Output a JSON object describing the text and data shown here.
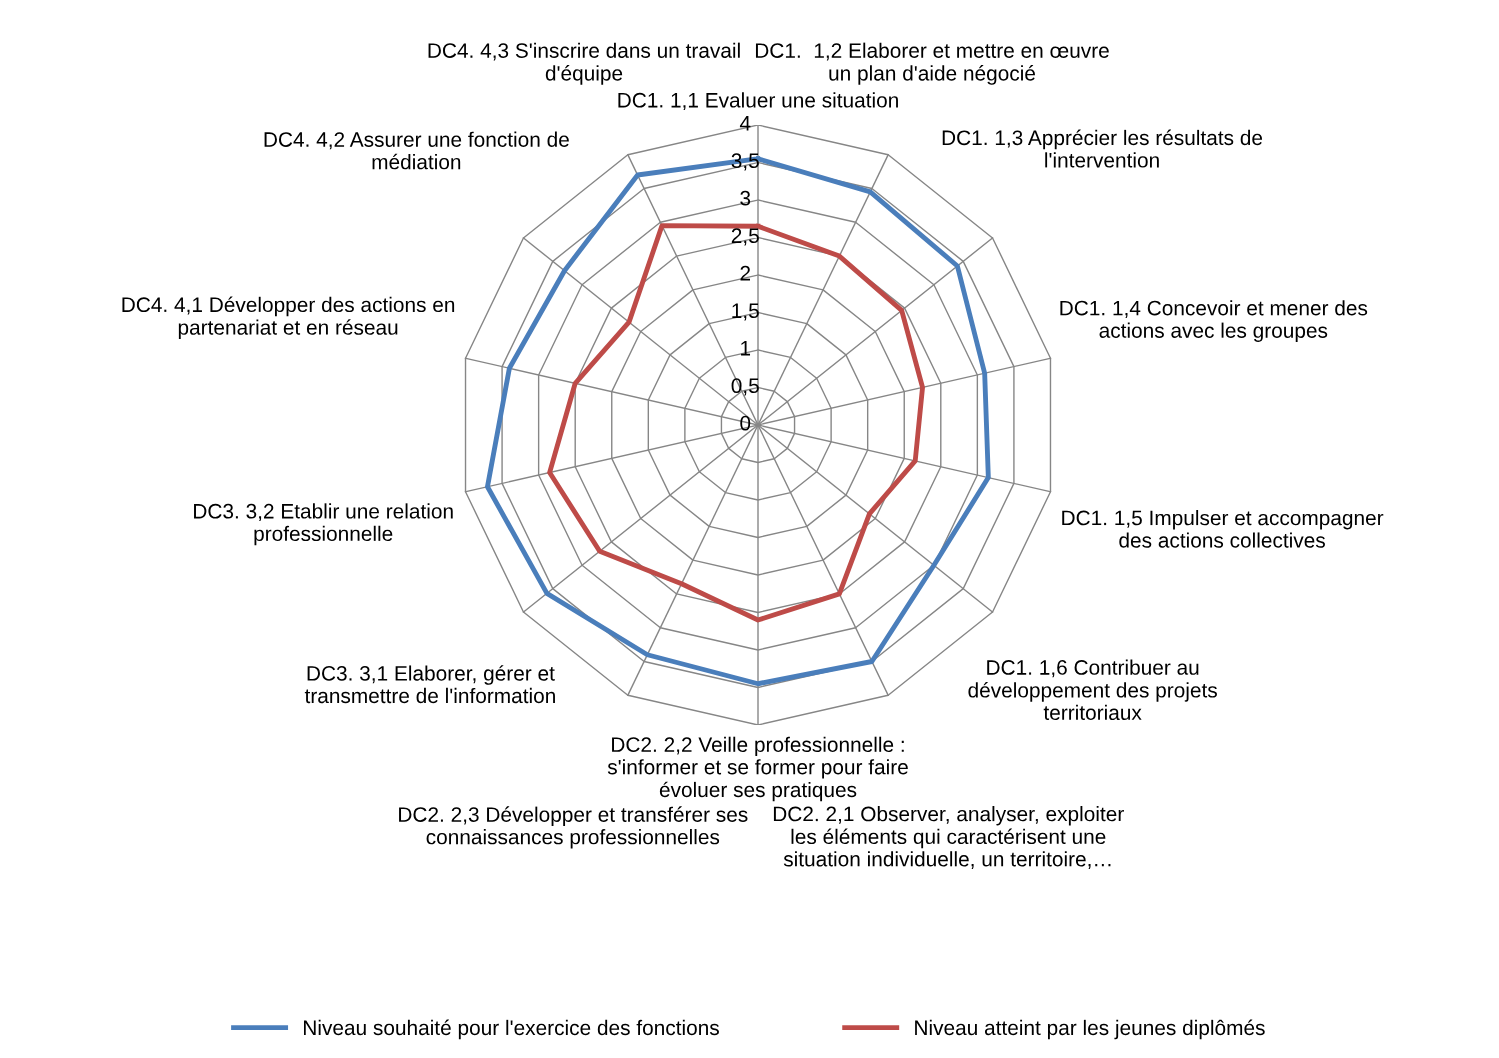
{
  "chart_data": {
    "type": "radar",
    "categories": [
      "DC1. 1,1 Evaluer une situation",
      "DC1.  1,2 Elaborer et mettre en œuvre\nun plan d'aide négocié",
      "DC1. 1,3 Apprécier les résultats de\nl'intervention",
      "DC1. 1,4 Concevoir et mener des\nactions avec les groupes",
      "DC1. 1,5 Impulser et accompagner\ndes actions collectives",
      "DC1. 1,6 Contribuer au\ndéveloppement des projets\nterritoriaux",
      "DC2. 2,1 Observer, analyser, exploiter\nles éléments qui caractérisent une\nsituation individuelle, un territoire,…",
      "DC2. 2,2 Veille professionnelle :\ns'informer et se former pour faire\névoluer ses pratiques",
      "DC2. 2,3 Développer et transférer ses\nconnaissances professionnelles",
      "DC3. 3,1 Elaborer, gérer et\ntransmettre de l'information",
      "DC3. 3,2 Etablir une relation\nprofessionnelle",
      "DC4. 4,1 Développer des actions en\npartenariat et en réseau",
      "DC4. 4,2 Assurer une fonction de\nmédiation",
      "DC4. 4,3 S'inscrire dans un travail\nd'équipe"
    ],
    "series": [
      {
        "name": "Niveau souhaité pour l'exercice des fonctions",
        "color": "#4a7ebb",
        "values": [
          3.55,
          3.45,
          3.4,
          3.1,
          3.15,
          3.0,
          3.5,
          3.45,
          3.4,
          3.6,
          3.7,
          3.4,
          3.3,
          3.7
        ]
      },
      {
        "name": "Niveau atteint par les jeunes diplômés",
        "color": "#be4b48",
        "values": [
          2.65,
          2.5,
          2.45,
          2.25,
          2.15,
          1.9,
          2.5,
          2.6,
          2.35,
          2.7,
          2.85,
          2.5,
          2.2,
          2.95
        ]
      }
    ],
    "ylim": [
      0,
      4
    ],
    "yticks": [
      0,
      {
        "value": 0.5,
        "label": "0,5"
      },
      1,
      {
        "value": 1.5,
        "label": "1,5"
      },
      2,
      {
        "value": 2.5,
        "label": "2,5"
      },
      3,
      {
        "value": 3.5,
        "label": "3,5"
      },
      4
    ],
    "grid": true,
    "legend": "bottom",
    "marker": "none",
    "line_style": "solid"
  }
}
